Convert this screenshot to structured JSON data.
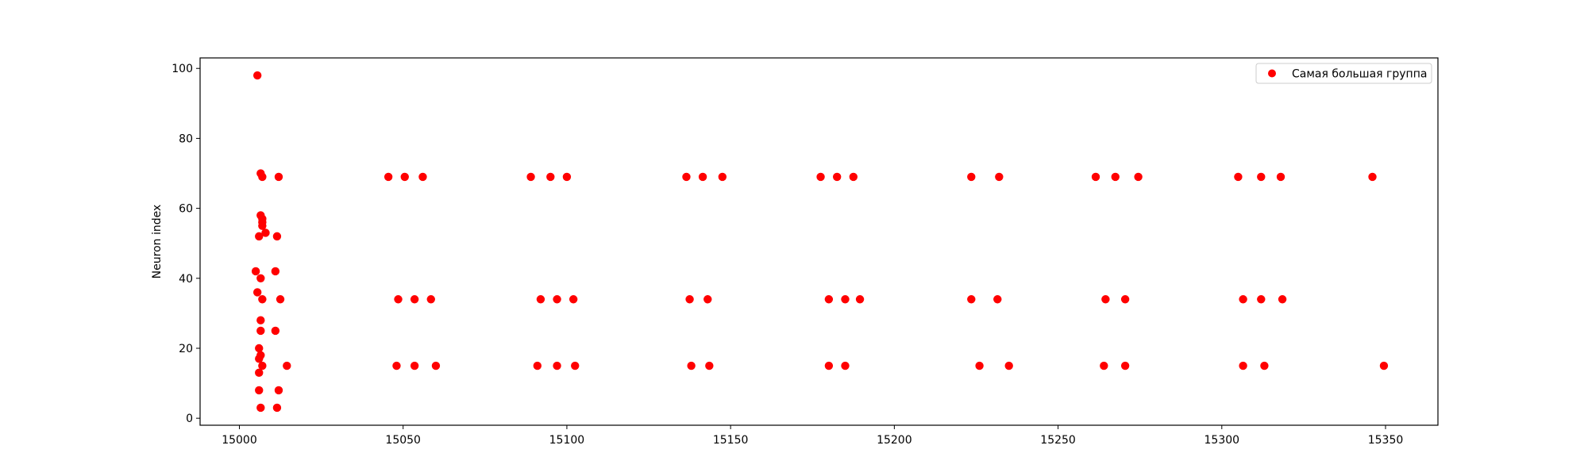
{
  "chart_data": {
    "type": "scatter",
    "title": "",
    "xlabel": "",
    "ylabel": "Neuron index",
    "xlim": [
      14988,
      15366
    ],
    "ylim": [
      -2,
      103
    ],
    "xticks": [
      15000,
      15050,
      15100,
      15150,
      15200,
      15250,
      15300,
      15350
    ],
    "yticks": [
      0,
      20,
      40,
      60,
      80,
      100
    ],
    "grid": false,
    "legend_position": "top-right",
    "series": [
      {
        "name": "Самая большая группа",
        "color": "#ff0000",
        "points": [
          [
            15005.5,
            98
          ],
          [
            15006.5,
            70
          ],
          [
            15007,
            69
          ],
          [
            15006.5,
            58
          ],
          [
            15007,
            57
          ],
          [
            15007,
            56
          ],
          [
            15007,
            55
          ],
          [
            15008,
            53
          ],
          [
            15006,
            52
          ],
          [
            15005,
            42
          ],
          [
            15006.5,
            40
          ],
          [
            15005.5,
            36
          ],
          [
            15007,
            34
          ],
          [
            15006.5,
            28
          ],
          [
            15006.5,
            25
          ],
          [
            15006,
            20
          ],
          [
            15006.5,
            18
          ],
          [
            15006,
            17
          ],
          [
            15007,
            15
          ],
          [
            15006,
            13
          ],
          [
            15006,
            8
          ],
          [
            15006.5,
            3
          ],
          [
            15012,
            69
          ],
          [
            15011.5,
            52
          ],
          [
            15011,
            42
          ],
          [
            15012.5,
            34
          ],
          [
            15011,
            25
          ],
          [
            15014.5,
            15
          ],
          [
            15012,
            8
          ],
          [
            15011.5,
            3
          ],
          [
            15045.5,
            69
          ],
          [
            15050.5,
            69
          ],
          [
            15056,
            69
          ],
          [
            15048.5,
            34
          ],
          [
            15053.5,
            34
          ],
          [
            15058.5,
            34
          ],
          [
            15048,
            15
          ],
          [
            15053.5,
            15
          ],
          [
            15060,
            15
          ],
          [
            15089,
            69
          ],
          [
            15095,
            69
          ],
          [
            15100,
            69
          ],
          [
            15092,
            34
          ],
          [
            15097,
            34
          ],
          [
            15102,
            34
          ],
          [
            15091,
            15
          ],
          [
            15097,
            15
          ],
          [
            15102.5,
            15
          ],
          [
            15136.5,
            69
          ],
          [
            15141.5,
            69
          ],
          [
            15147.5,
            69
          ],
          [
            15137.5,
            34
          ],
          [
            15143,
            34
          ],
          [
            15138,
            15
          ],
          [
            15143.5,
            15
          ],
          [
            15177.5,
            69
          ],
          [
            15182.5,
            69
          ],
          [
            15187.5,
            69
          ],
          [
            15180,
            34
          ],
          [
            15185,
            34
          ],
          [
            15189.5,
            34
          ],
          [
            15180,
            15
          ],
          [
            15185,
            15
          ],
          [
            15223.5,
            69
          ],
          [
            15232,
            69
          ],
          [
            15223.5,
            34
          ],
          [
            15231.5,
            34
          ],
          [
            15226,
            15
          ],
          [
            15235,
            15
          ],
          [
            15261.5,
            69
          ],
          [
            15267.5,
            69
          ],
          [
            15274.5,
            69
          ],
          [
            15264.5,
            34
          ],
          [
            15270.5,
            34
          ],
          [
            15264,
            15
          ],
          [
            15270.5,
            15
          ],
          [
            15305,
            69
          ],
          [
            15312,
            69
          ],
          [
            15318,
            69
          ],
          [
            15306.5,
            34
          ],
          [
            15312,
            34
          ],
          [
            15318.5,
            34
          ],
          [
            15306.5,
            15
          ],
          [
            15313,
            15
          ],
          [
            15346,
            69
          ],
          [
            15349.5,
            15
          ]
        ]
      }
    ]
  }
}
